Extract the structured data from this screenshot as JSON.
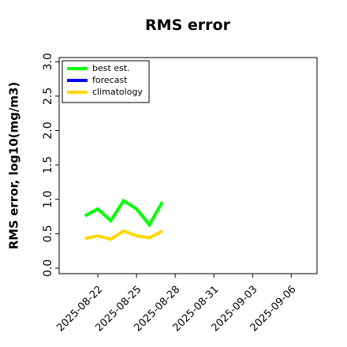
{
  "chart_data": {
    "type": "line",
    "title": "RMS error",
    "ylabel": "RMS error, log10(mg/m3)",
    "x": [
      "2025-08-21",
      "2025-08-22",
      "2025-08-23",
      "2025-08-24",
      "2025-08-25",
      "2025-08-26",
      "2025-08-27"
    ],
    "series": [
      {
        "name": "best est.",
        "color": "#00ff00",
        "values": [
          0.76,
          0.86,
          0.69,
          0.98,
          0.86,
          0.63,
          0.96
        ]
      },
      {
        "name": "forecast",
        "color": "#0000ff",
        "values": [
          null,
          null,
          null,
          null,
          null,
          null,
          null
        ]
      },
      {
        "name": "climatology",
        "color": "#ffd700",
        "values": [
          0.43,
          0.47,
          0.42,
          0.54,
          0.47,
          0.44,
          0.54
        ]
      }
    ],
    "xlim": [
      "2025-08-19",
      "2025-09-08"
    ],
    "xticks": [
      "2025-08-22",
      "2025-08-25",
      "2025-08-28",
      "2025-08-31",
      "2025-09-03",
      "2025-09-06"
    ],
    "highlight_xtick": "2025-08-28",
    "highlight_color": "#228b22",
    "ylim": [
      -0.08,
      3.06
    ],
    "yticks": [
      {
        "value": 0,
        "label": "0.0"
      },
      0.5,
      {
        "value": 1,
        "label": "1.0"
      },
      1.5,
      {
        "value": 2,
        "label": "2.0"
      },
      2.5,
      {
        "value": 3,
        "label": "3.0"
      }
    ],
    "legend": "upper left",
    "grid": false
  }
}
